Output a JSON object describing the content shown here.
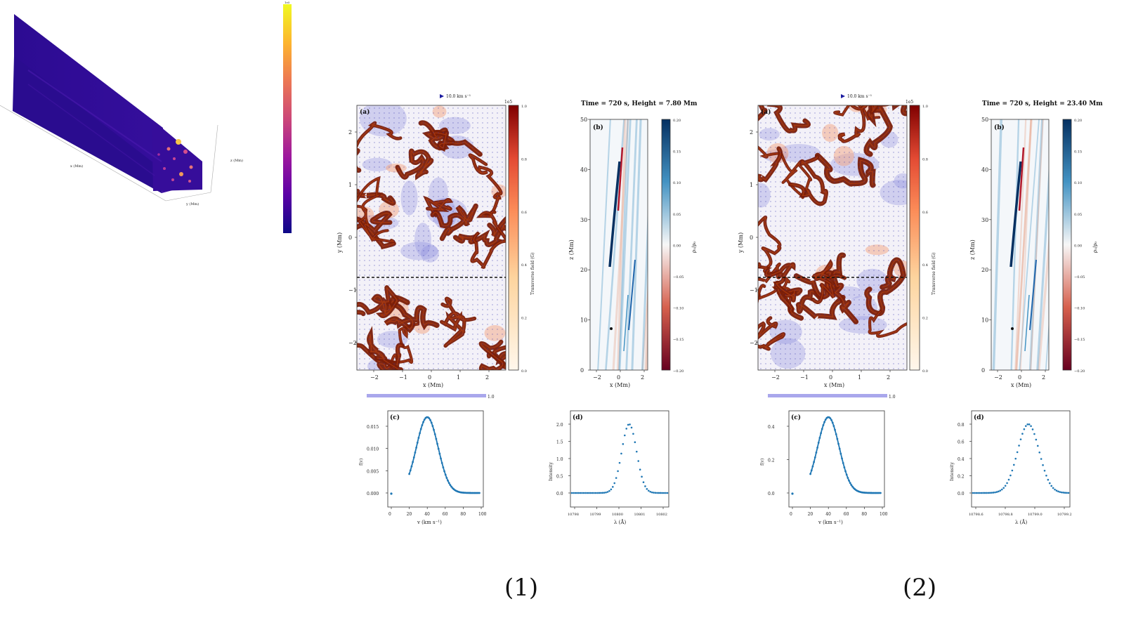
{
  "figure": {
    "box3d": {
      "x_label": "x (Mm)",
      "y_label": "y (Mm)",
      "z_label": "z (Mm)"
    },
    "colorbar3d": {
      "top_tick": "1e5",
      "colors": [
        "#0d0887",
        "#5c01a6",
        "#9c179e",
        "#cc4778",
        "#ed7953",
        "#fdb42f",
        "#f0f921"
      ]
    },
    "groups": [
      {
        "caption": "(1)",
        "vector_key_top": "10.0 km s⁻¹",
        "vector_key_bottom": "1.0",
        "map": {
          "label": "(a)",
          "xlabel": "x (Mm)",
          "ylabel": "y (Mm)",
          "cbar_label": "Transverse field (G)",
          "cbar_unit": "1e5",
          "xticks": [
            "−2",
            "−1",
            "0",
            "1",
            "2"
          ],
          "yticks": [
            "2",
            "1",
            "0",
            "−1",
            "−2"
          ],
          "cbar_ticks": [
            "1.0",
            "0.8",
            "0.6",
            "0.4",
            "0.2",
            "0.0"
          ]
        },
        "tz": {
          "title": "Time = 720 s, Height = 7.80 Mm",
          "label": "(b)",
          "xlabel": "x (Mm)",
          "ylabel": "z (Mm)",
          "cbar_label": "ρ₁/ρ₀",
          "xticks": [
            "−2",
            "0",
            "2"
          ],
          "yticks": [
            "50",
            "40",
            "30",
            "20",
            "10",
            "0"
          ],
          "cbar_ticks": [
            "0.20",
            "0.15",
            "0.10",
            "0.05",
            "0.00",
            "−0.05",
            "−0.10",
            "−0.15",
            "−0.20"
          ]
        },
        "dist": {
          "label": "(c)",
          "xlabel": "v (km s⁻¹)",
          "ylabel": "f(v)",
          "xticks": [
            "0",
            "20",
            "40",
            "60",
            "80",
            "100"
          ],
          "yticks": [
            "0.015",
            "0.010",
            "0.005",
            "0.000"
          ]
        },
        "line": {
          "label": "(d)",
          "xlabel": "λ (Å)",
          "ylabel": "Intensity",
          "xticks": [
            "10798",
            "10799",
            "10800",
            "10801",
            "10802"
          ],
          "yticks": [
            "2.0",
            "1.5",
            "1.0",
            "0.5",
            "0.0"
          ]
        }
      },
      {
        "caption": "(2)",
        "vector_key_top": "10.0 km s⁻¹",
        "vector_key_bottom": "1.0",
        "map": {
          "label": "(a)",
          "xlabel": "x (Mm)",
          "ylabel": "y (Mm)",
          "cbar_label": "Transverse field (G)",
          "cbar_unit": "1e5",
          "xticks": [
            "−2",
            "−1",
            "0",
            "1",
            "2"
          ],
          "yticks": [
            "2",
            "1",
            "0",
            "−1",
            "−2"
          ],
          "cbar_ticks": [
            "1.0",
            "0.8",
            "0.6",
            "0.4",
            "0.2",
            "0.0"
          ]
        },
        "tz": {
          "title": "Time = 720 s, Height = 23.40 Mm",
          "label": "(b)",
          "xlabel": "x (Mm)",
          "ylabel": "z (Mm)",
          "cbar_label": "ρ₁/ρ₀",
          "xticks": [
            "−2",
            "0",
            "2"
          ],
          "yticks": [
            "50",
            "40",
            "30",
            "20",
            "10",
            "0"
          ],
          "cbar_ticks": [
            "0.20",
            "0.15",
            "0.10",
            "0.05",
            "0.00",
            "−0.05",
            "−0.10",
            "−0.15",
            "−0.20"
          ]
        },
        "dist": {
          "label": "(c)",
          "xlabel": "v (km s⁻¹)",
          "ylabel": "f(v)",
          "xticks": [
            "0",
            "20",
            "40",
            "60",
            "80",
            "100"
          ],
          "yticks": [
            "0.4",
            "0.2",
            "0.0"
          ]
        },
        "line": {
          "label": "(d)",
          "xlabel": "λ (Å)",
          "ylabel": "Intensity",
          "xticks": [
            "10798.6",
            "10798.8",
            "10799.0",
            "10799.2"
          ],
          "yticks": [
            "0.8",
            "0.6",
            "0.4",
            "0.2",
            "0.0"
          ]
        }
      }
    ]
  }
}
